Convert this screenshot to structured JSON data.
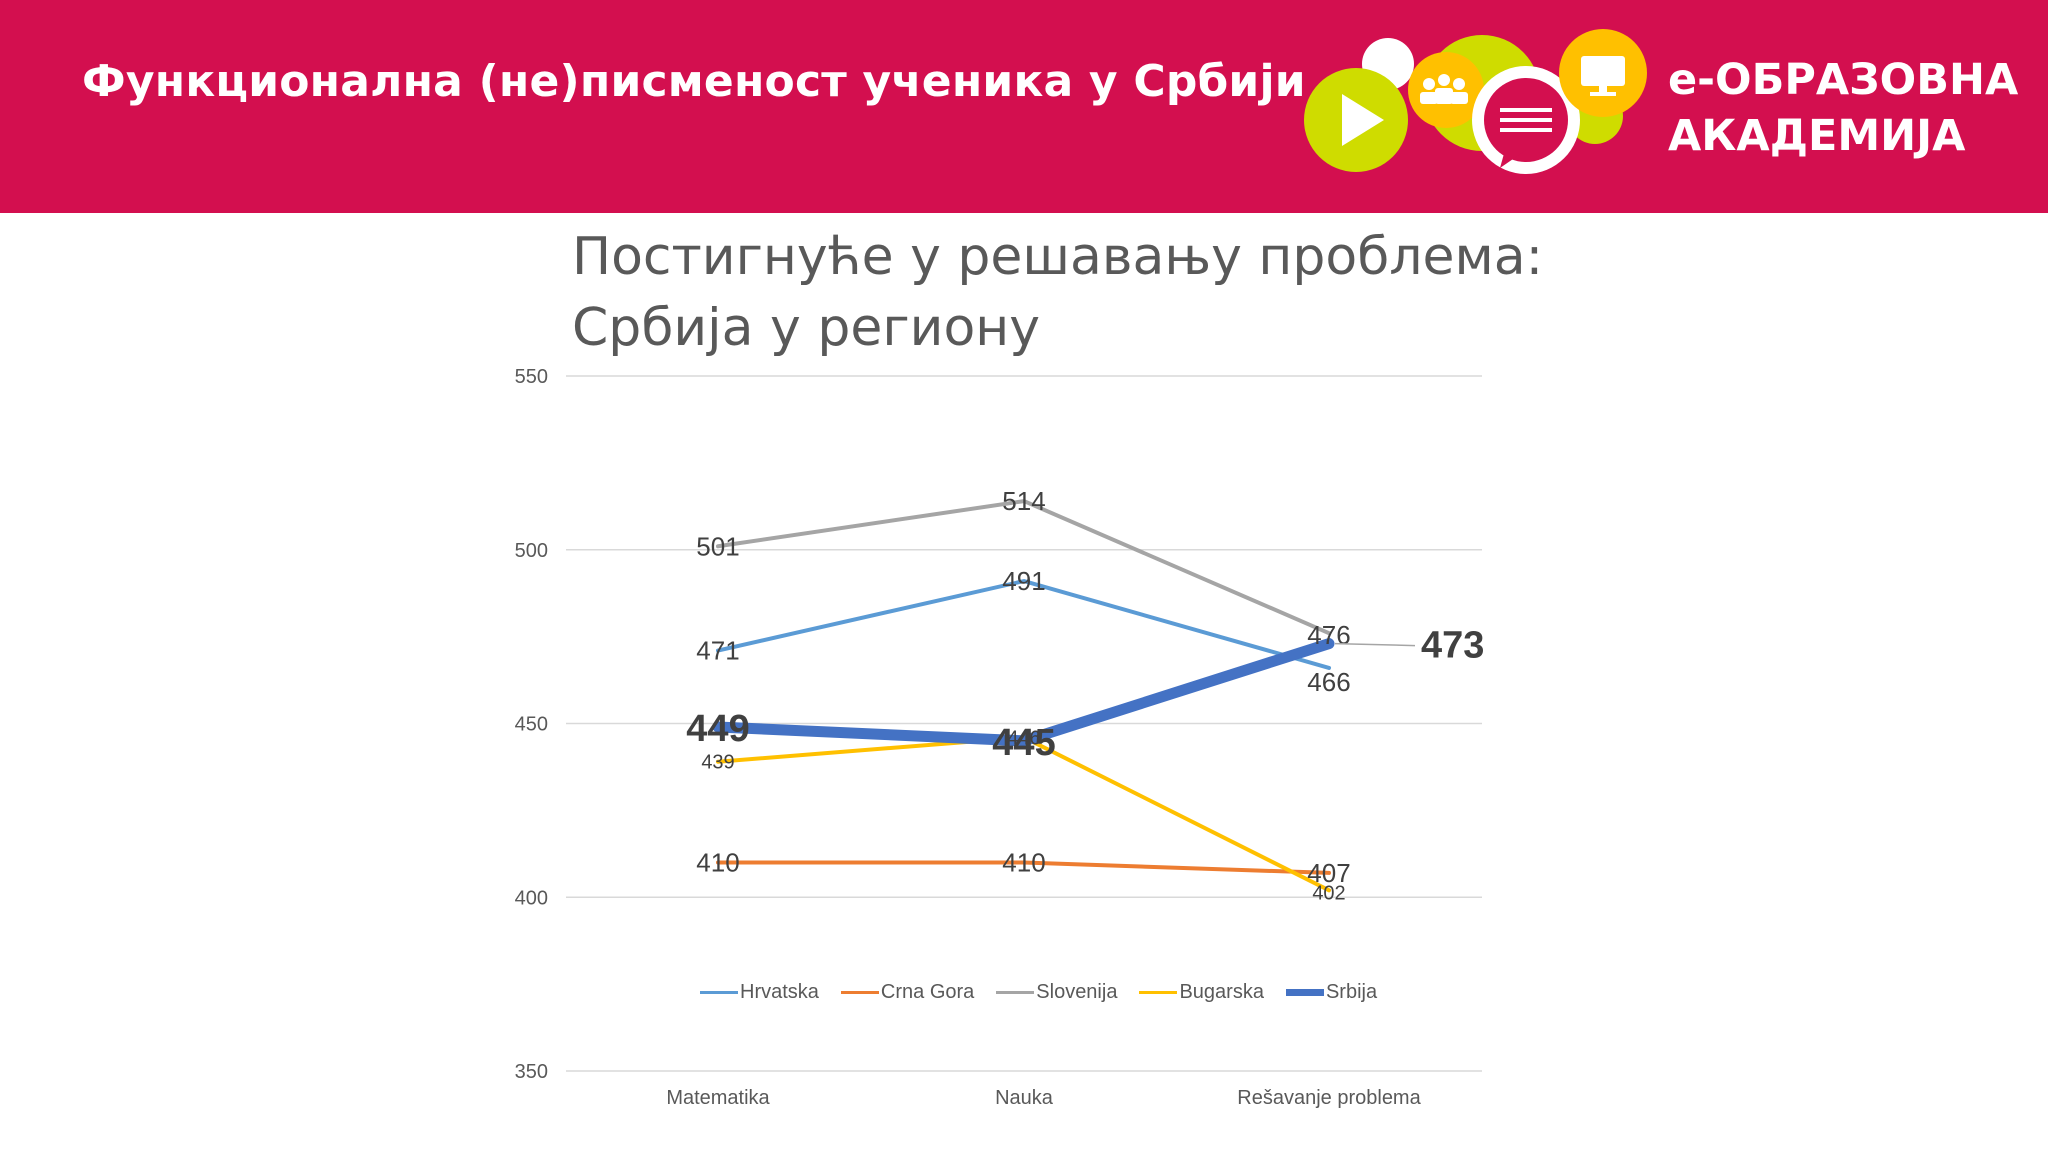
{
  "header": {
    "title": "Функционална (не)писменост ученика у Србији",
    "logo_line1": "e-ОБРАЗОВНА",
    "logo_line2": "АКАДЕМИЈА",
    "bg_color": "#d30f4f"
  },
  "chart_data": {
    "type": "line",
    "title_line1": "Постигнуће у решавању проблема:",
    "title_line2": "Србија у региону",
    "categories": [
      "Matematika",
      "Nauka",
      "Rešavanje problema"
    ],
    "ylim": [
      350,
      550
    ],
    "yticks": [
      350,
      400,
      450,
      500,
      550
    ],
    "grid": true,
    "legend_position": "bottom",
    "series": [
      {
        "name": "Hrvatska",
        "values": [
          471,
          491,
          466
        ],
        "color": "#5b9bd5"
      },
      {
        "name": "Crna Gora",
        "values": [
          410,
          410,
          407
        ],
        "color": "#ed7d31"
      },
      {
        "name": "Slovenija",
        "values": [
          501,
          514,
          476
        ],
        "color": "#a5a5a5"
      },
      {
        "name": "Bugarska",
        "values": [
          439,
          446,
          402
        ],
        "color": "#ffc000"
      },
      {
        "name": "Srbija",
        "values": [
          449,
          445,
          473
        ],
        "color": "#4472c4",
        "emphasis": true
      }
    ]
  }
}
